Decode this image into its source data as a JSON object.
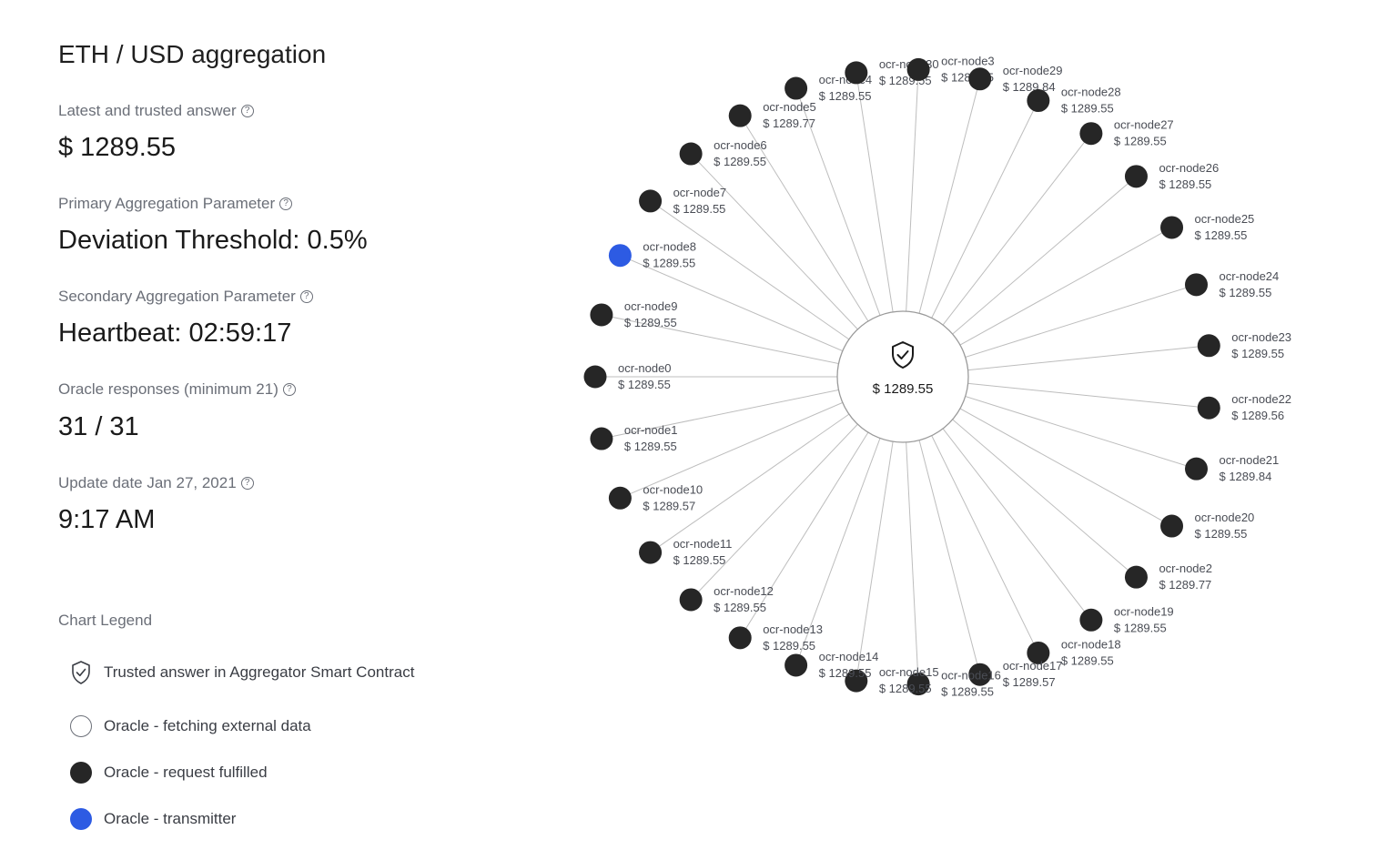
{
  "panel": {
    "title": "ETH / USD aggregation",
    "latest_label": "Latest and trusted answer",
    "latest_value": "$ 1289.55",
    "primary_label": "Primary Aggregation Parameter",
    "primary_value": "Deviation Threshold: 0.5%",
    "secondary_label": "Secondary Aggregation Parameter",
    "secondary_value": "Heartbeat: 02:59:17",
    "responses_label": "Oracle responses (minimum 21)",
    "responses_value": "31 / 31",
    "update_label": "Update date Jan 27, 2021",
    "update_value": "9:17 AM",
    "help_icon": "?"
  },
  "legend": {
    "title": "Chart Legend",
    "trusted": "Trusted answer in Aggregator Smart Contract",
    "fetching": "Oracle - fetching external data",
    "fulfilled": "Oracle - request fulfilled",
    "transmitter": "Oracle - transmitter"
  },
  "colors": {
    "fulfilled": "#262626",
    "transmitter": "#2d5be3",
    "edge": "#bdbdbd",
    "center_border": "#9a9a9a"
  },
  "diagram": {
    "center_value": "$ 1289.55",
    "center_icon": "shield-check-icon",
    "nodes": [
      {
        "name": "ocr-node0",
        "value": "$ 1289.55",
        "status": "fulfilled"
      },
      {
        "name": "ocr-node9",
        "value": "$ 1289.55",
        "status": "fulfilled"
      },
      {
        "name": "ocr-node8",
        "value": "$ 1289.55",
        "status": "transmitter"
      },
      {
        "name": "ocr-node7",
        "value": "$ 1289.55",
        "status": "fulfilled"
      },
      {
        "name": "ocr-node6",
        "value": "$ 1289.55",
        "status": "fulfilled"
      },
      {
        "name": "ocr-node5",
        "value": "$ 1289.77",
        "status": "fulfilled"
      },
      {
        "name": "ocr-node4",
        "value": "$ 1289.55",
        "status": "fulfilled"
      },
      {
        "name": "ocr-node30",
        "value": "$ 1289.55",
        "status": "fulfilled"
      },
      {
        "name": "ocr-node3",
        "value": "$ 1289.55",
        "status": "fulfilled"
      },
      {
        "name": "ocr-node29",
        "value": "$ 1289.84",
        "status": "fulfilled"
      },
      {
        "name": "ocr-node28",
        "value": "$ 1289.55",
        "status": "fulfilled"
      },
      {
        "name": "ocr-node27",
        "value": "$ 1289.55",
        "status": "fulfilled"
      },
      {
        "name": "ocr-node26",
        "value": "$ 1289.55",
        "status": "fulfilled"
      },
      {
        "name": "ocr-node25",
        "value": "$ 1289.55",
        "status": "fulfilled"
      },
      {
        "name": "ocr-node24",
        "value": "$ 1289.55",
        "status": "fulfilled"
      },
      {
        "name": "ocr-node23",
        "value": "$ 1289.55",
        "status": "fulfilled"
      },
      {
        "name": "ocr-node22",
        "value": "$ 1289.56",
        "status": "fulfilled"
      },
      {
        "name": "ocr-node21",
        "value": "$ 1289.84",
        "status": "fulfilled"
      },
      {
        "name": "ocr-node20",
        "value": "$ 1289.55",
        "status": "fulfilled"
      },
      {
        "name": "ocr-node2",
        "value": "$ 1289.77",
        "status": "fulfilled"
      },
      {
        "name": "ocr-node19",
        "value": "$ 1289.55",
        "status": "fulfilled"
      },
      {
        "name": "ocr-node18",
        "value": "$ 1289.55",
        "status": "fulfilled"
      },
      {
        "name": "ocr-node17",
        "value": "$ 1289.57",
        "status": "fulfilled"
      },
      {
        "name": "ocr-node16",
        "value": "$ 1289.55",
        "status": "fulfilled"
      },
      {
        "name": "ocr-node15",
        "value": "$ 1289.55",
        "status": "fulfilled"
      },
      {
        "name": "ocr-node14",
        "value": "$ 1289.55",
        "status": "fulfilled"
      },
      {
        "name": "ocr-node13",
        "value": "$ 1289.55",
        "status": "fulfilled"
      },
      {
        "name": "ocr-node12",
        "value": "$ 1289.55",
        "status": "fulfilled"
      },
      {
        "name": "ocr-node11",
        "value": "$ 1289.55",
        "status": "fulfilled"
      },
      {
        "name": "ocr-node10",
        "value": "$ 1289.57",
        "status": "fulfilled"
      },
      {
        "name": "ocr-node1",
        "value": "$ 1289.55",
        "status": "fulfilled"
      }
    ]
  }
}
